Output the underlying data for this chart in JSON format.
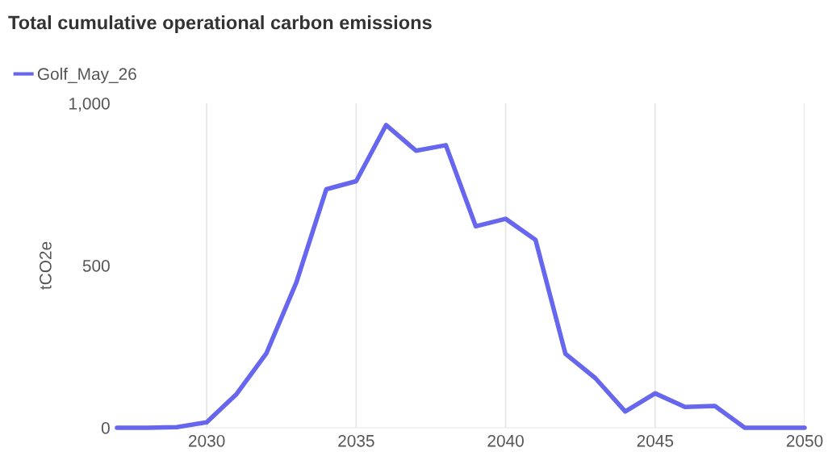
{
  "chart_data": {
    "type": "line",
    "title": "Total cumulative operational carbon emissions",
    "ylabel": "tCO2e",
    "x": [
      2027,
      2028,
      2029,
      2030,
      2031,
      2032,
      2033,
      2034,
      2035,
      2036,
      2037,
      2038,
      2039,
      2040,
      2041,
      2042,
      2043,
      2044,
      2045,
      2046,
      2047,
      2048,
      2049,
      2050
    ],
    "series": [
      {
        "name": "Golf_May_26",
        "color": "#6666ee",
        "values": [
          0,
          0,
          2,
          17,
          104,
          230,
          448,
          735,
          760,
          933,
          854,
          871,
          621,
          644,
          579,
          228,
          153,
          50,
          106,
          64,
          67,
          0,
          0,
          0
        ]
      }
    ],
    "xlim": [
      2027,
      2050
    ],
    "ylim": [
      0,
      1000
    ],
    "xticks": [
      2030,
      2035,
      2040,
      2045,
      2050
    ],
    "yticks": [
      0,
      500,
      {
        "value": 1000,
        "label": "1,000"
      }
    ],
    "grid": "x",
    "legend": "top left",
    "marker": "none",
    "line_style": "solid"
  }
}
